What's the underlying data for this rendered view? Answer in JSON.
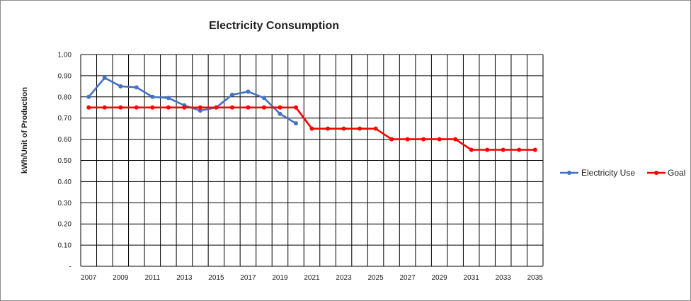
{
  "chart_data": {
    "type": "line",
    "title": "Electricity Consumption",
    "xlabel": "",
    "ylabel": "kWh/Unit of Production",
    "ylim": [
      0,
      1.0
    ],
    "y_ticks": [
      "-",
      "0.10",
      "0.20",
      "0.30",
      "0.40",
      "0.50",
      "0.60",
      "0.70",
      "0.80",
      "0.90",
      "1.00"
    ],
    "x": [
      2007,
      2008,
      2009,
      2010,
      2011,
      2012,
      2013,
      2014,
      2015,
      2016,
      2017,
      2018,
      2019,
      2020,
      2021,
      2022,
      2023,
      2024,
      2025,
      2026,
      2027,
      2028,
      2029,
      2030,
      2031,
      2032,
      2033,
      2034,
      2035
    ],
    "x_tick_labels": [
      "2007",
      "2009",
      "2011",
      "2013",
      "2015",
      "2017",
      "2019",
      "2021",
      "2023",
      "2025",
      "2027",
      "2029",
      "2031",
      "2033",
      "2035"
    ],
    "grid": true,
    "legend_position": "right",
    "series": [
      {
        "name": "Electricity Use",
        "color": "#4472C4",
        "values": [
          0.8,
          0.89,
          0.85,
          0.845,
          0.8,
          0.795,
          0.76,
          0.735,
          0.75,
          0.81,
          0.825,
          0.795,
          0.72,
          0.675,
          null,
          null,
          null,
          null,
          null,
          null,
          null,
          null,
          null,
          null,
          null,
          null,
          null,
          null,
          null
        ]
      },
      {
        "name": "Goal",
        "color": "#FF0000",
        "values": [
          0.75,
          0.75,
          0.75,
          0.75,
          0.75,
          0.75,
          0.75,
          0.75,
          0.75,
          0.75,
          0.75,
          0.75,
          0.75,
          0.75,
          0.65,
          0.65,
          0.65,
          0.65,
          0.65,
          0.6,
          0.6,
          0.6,
          0.6,
          0.6,
          0.55,
          0.55,
          0.55,
          0.55,
          0.55
        ]
      }
    ]
  }
}
